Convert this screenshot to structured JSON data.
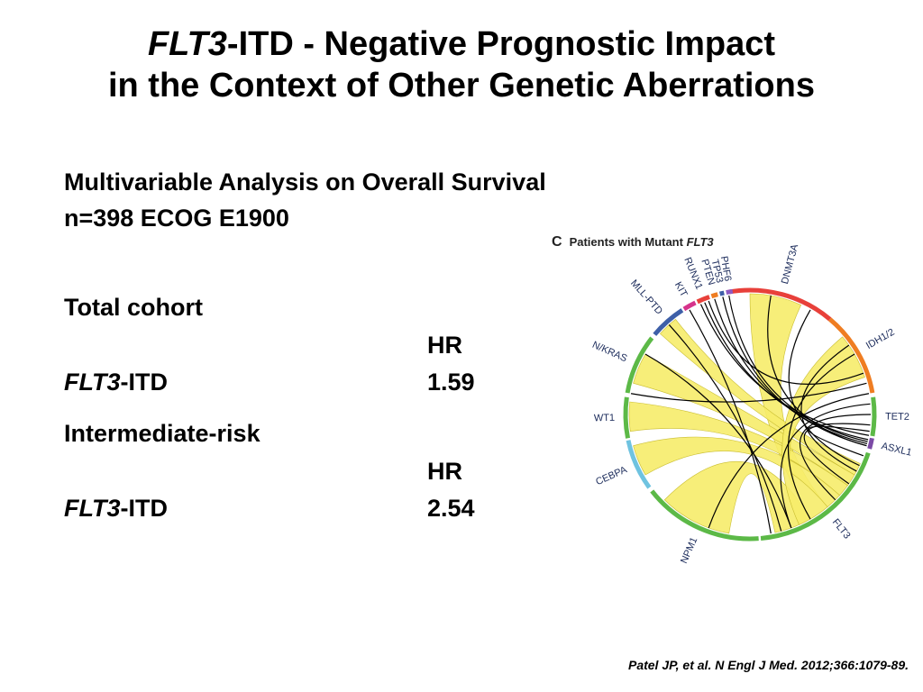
{
  "header": {
    "title_italic": "FLT3",
    "title_line1_rest": "-ITD - Negative Prognostic Impact",
    "title_line2": "in the Context of Other Genetic Aberrations"
  },
  "analysis": {
    "heading": "Multivariable Analysis on Overall Survival",
    "cohort_info": "n=398 ECOG E1900"
  },
  "groups": [
    {
      "name": "Total cohort",
      "col_header": "HR",
      "gene_italic": "FLT3",
      "gene_rest": "-ITD",
      "hr": "1.59"
    },
    {
      "name": "Intermediate-risk",
      "col_header": "HR",
      "gene_italic": "FLT3",
      "gene_rest": "-ITD",
      "hr": "2.54"
    }
  ],
  "figure": {
    "panel_letter": "C",
    "caption_prefix": "Patients with Mutant ",
    "caption_italic": "FLT3",
    "segments": [
      {
        "label": "DNMT3A",
        "color": "#e8403a"
      },
      {
        "label": "IDH1/2",
        "color": "#ef7d22"
      },
      {
        "label": "TET2",
        "color": "#5cb947"
      },
      {
        "label": "ASXL1",
        "color": "#7b4aa5"
      },
      {
        "label": "FLT3",
        "color": "#5cb947"
      },
      {
        "label": "NPM1",
        "color": "#5cb947"
      },
      {
        "label": "CEBPA",
        "color": "#6fc3e0"
      },
      {
        "label": "WT1",
        "color": "#5cb947"
      },
      {
        "label": "N/KRAS",
        "color": "#5cb947"
      },
      {
        "label": "MLL-PTD",
        "color": "#3e5fa8"
      },
      {
        "label": "KIT",
        "color": "#d6338b"
      },
      {
        "label": "RUNX1",
        "color": "#e8403a"
      },
      {
        "label": "PTEN",
        "color": "#ef7d22"
      },
      {
        "label": "TP53",
        "color": "#3e5fa8"
      },
      {
        "label": "PHF6",
        "color": "#8e5ac2"
      }
    ],
    "ribbon_color": "#f6ec6a",
    "link_color": "#000000"
  },
  "citation": "Patel JP, et al. N Engl J Med. 2012;366:1079-89."
}
